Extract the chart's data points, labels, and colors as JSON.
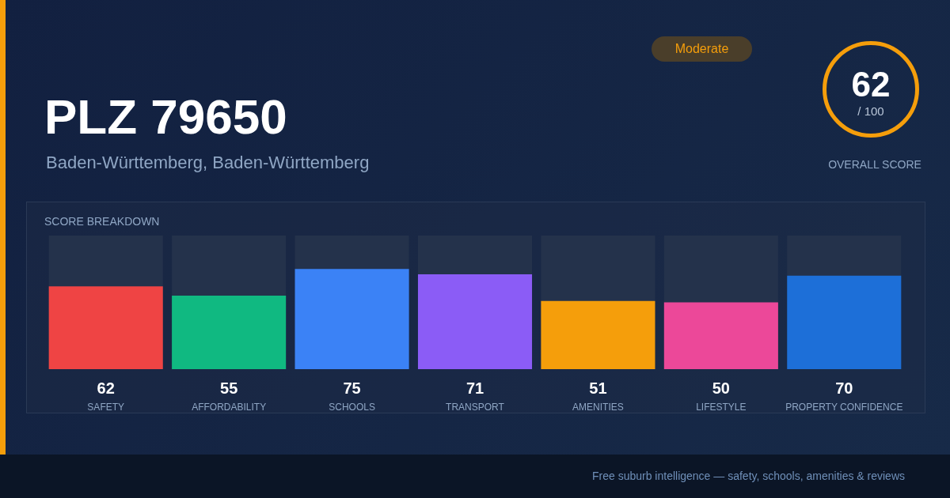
{
  "chart_data": {
    "type": "bar",
    "title": "PLZ 79650",
    "subtitle": "Baden-Württemberg, Baden-Württemberg",
    "annotations": [
      "Moderate",
      "62",
      "/ 100",
      "OVERALL SCORE",
      "SCORE BREAKDOWN",
      "Free suburb intelligence — safety, schools, amenities & reviews"
    ],
    "categories": [
      "SAFETY",
      "AFFORDABILITY",
      "SCHOOLS",
      "TRANSPORT",
      "AMENITIES",
      "LIFESTYLE",
      "PROPERTY CONFIDENCE"
    ],
    "values": [
      62,
      55,
      75,
      71,
      51,
      50,
      70
    ],
    "colors": [
      "#ef4444",
      "#10b981",
      "#3b82f6",
      "#8b5cf6",
      "#f59e0b",
      "#ec4899",
      "#1d6fd8"
    ],
    "ylim": [
      0,
      100
    ],
    "data_labels": true,
    "tick_labels": false,
    "legend": false
  }
}
